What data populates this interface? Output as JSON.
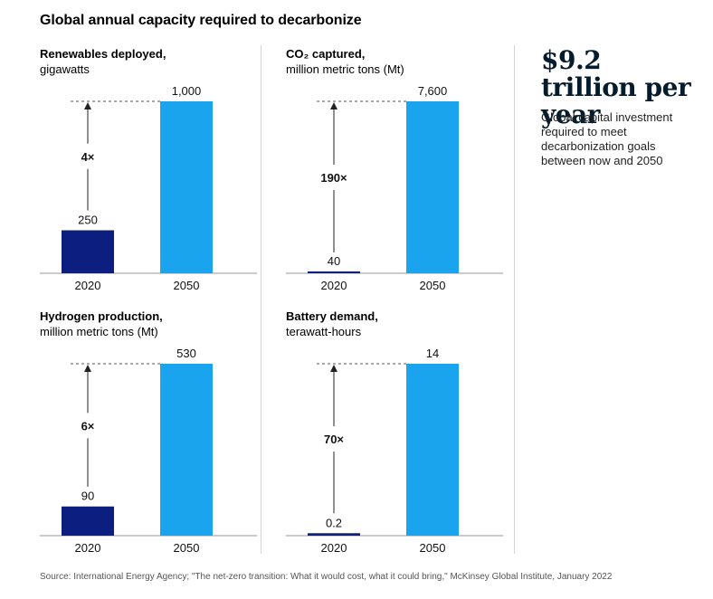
{
  "title": "Global annual capacity required to decarbonize",
  "headline": {
    "amount": "$9.2 trillion per year",
    "description": "Global capital investment required to meet decarbonization goals between now and 2050"
  },
  "source": "Source: International Energy Agency; \"The net-zero transition: What it would cost, what it could bring,\" McKinsey Global Institute, January 2022",
  "colors": {
    "bar_2020": "#0c1f80",
    "bar_2050": "#1aa4ee",
    "axis": "#999999",
    "arrow": "#222222"
  },
  "chart_data": [
    {
      "type": "bar",
      "title": "Renewables deployed,",
      "unit": "gigawatts",
      "categories": [
        "2020",
        "2050"
      ],
      "values": [
        250,
        1000
      ],
      "value_labels": [
        "250",
        "1,000"
      ],
      "multiplier": "4×",
      "ylim": [
        0,
        1000
      ]
    },
    {
      "type": "bar",
      "title": "CO₂ captured,",
      "unit": "million metric tons (Mt)",
      "categories": [
        "2020",
        "2050"
      ],
      "values": [
        40,
        7600
      ],
      "value_labels": [
        "40",
        "7,600"
      ],
      "multiplier": "190×",
      "ylim": [
        0,
        7600
      ]
    },
    {
      "type": "bar",
      "title": "Hydrogen production,",
      "unit": "million metric tons (Mt)",
      "categories": [
        "2020",
        "2050"
      ],
      "values": [
        90,
        530
      ],
      "value_labels": [
        "90",
        "530"
      ],
      "multiplier": "6×",
      "ylim": [
        0,
        530
      ]
    },
    {
      "type": "bar",
      "title": "Battery demand,",
      "unit": "terawatt-hours",
      "categories": [
        "2020",
        "2050"
      ],
      "values": [
        0.2,
        14
      ],
      "value_labels": [
        "0.2",
        "14"
      ],
      "multiplier": "70×",
      "ylim": [
        0,
        14
      ]
    }
  ]
}
